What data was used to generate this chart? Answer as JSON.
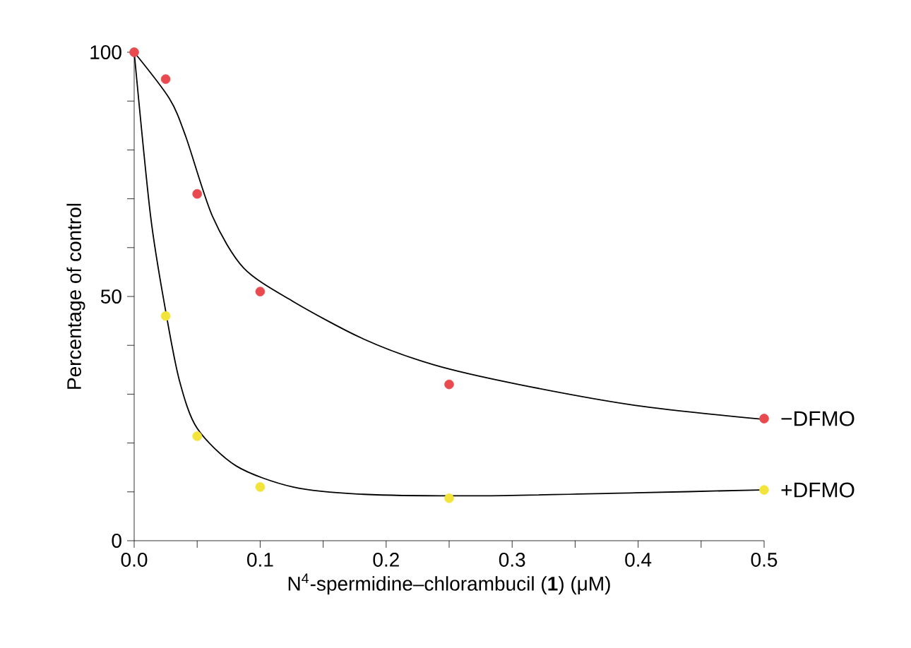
{
  "chart_data": {
    "type": "line",
    "xlabel": "N$^{4}$-spermidine–chlorambucil (**1**) (μM)",
    "ylabel": "Percentage of control",
    "xlim": [
      0,
      0.5
    ],
    "ylim": [
      0,
      100
    ],
    "xticks": [
      {
        "value": 0,
        "label": "0.0"
      },
      {
        "value": 0.05,
        "label": null
      },
      {
        "value": 0.1,
        "label": "0.1"
      },
      {
        "value": 0.15,
        "label": null
      },
      {
        "value": 0.2,
        "label": "0.2"
      },
      {
        "value": 0.25,
        "label": null
      },
      {
        "value": 0.3,
        "label": "0.3"
      },
      {
        "value": 0.35,
        "label": null
      },
      {
        "value": 0.4,
        "label": "0.4"
      },
      {
        "value": 0.45,
        "label": null
      },
      {
        "value": 0.5,
        "label": "0.5"
      }
    ],
    "yticks": [
      0,
      {
        "value": 10,
        "label": null
      },
      {
        "value": 20,
        "label": null
      },
      {
        "value": 30,
        "label": null
      },
      {
        "value": 40,
        "label": null
      },
      50,
      {
        "value": 60,
        "label": null
      },
      {
        "value": 70,
        "label": null
      },
      {
        "value": 80,
        "label": null
      },
      {
        "value": 90,
        "label": null
      },
      100
    ],
    "grid": false,
    "series": [
      {
        "name": "−DFMO",
        "type": "scatter",
        "marker": "circle",
        "color": "#e84a50",
        "x": [
          0,
          0.025,
          0.05,
          0.1,
          0.25,
          0.5
        ],
        "values": [
          100,
          94.5,
          71,
          51,
          32,
          25
        ]
      },
      {
        "name": "+DFMO",
        "type": "scatter",
        "marker": "circle",
        "color": "#f2e43a",
        "x": [
          0.025,
          0.05,
          0.1,
          0.25,
          0.5
        ],
        "values": [
          46,
          21.4,
          11,
          8.7,
          10.4
        ]
      },
      {
        "marker": "none",
        "color": "#000000",
        "x": [
          0,
          0.028,
          0.041,
          0.062,
          0.087,
          0.126,
          0.182,
          0.238,
          0.305,
          0.398,
          0.497
        ],
        "values": [
          100,
          90.5,
          82.7,
          66.5,
          55.8,
          49,
          41.3,
          36,
          32,
          27.7,
          24.9
        ]
      },
      {
        "marker": "none",
        "color": "#000000",
        "x": [
          0,
          0.013,
          0.025,
          0.036,
          0.05,
          0.081,
          0.126,
          0.182,
          0.275,
          0.398,
          0.497
        ],
        "values": [
          100,
          66.5,
          47,
          32.7,
          23,
          15.3,
          11,
          9.5,
          9.2,
          9.8,
          10.4
        ]
      }
    ]
  }
}
